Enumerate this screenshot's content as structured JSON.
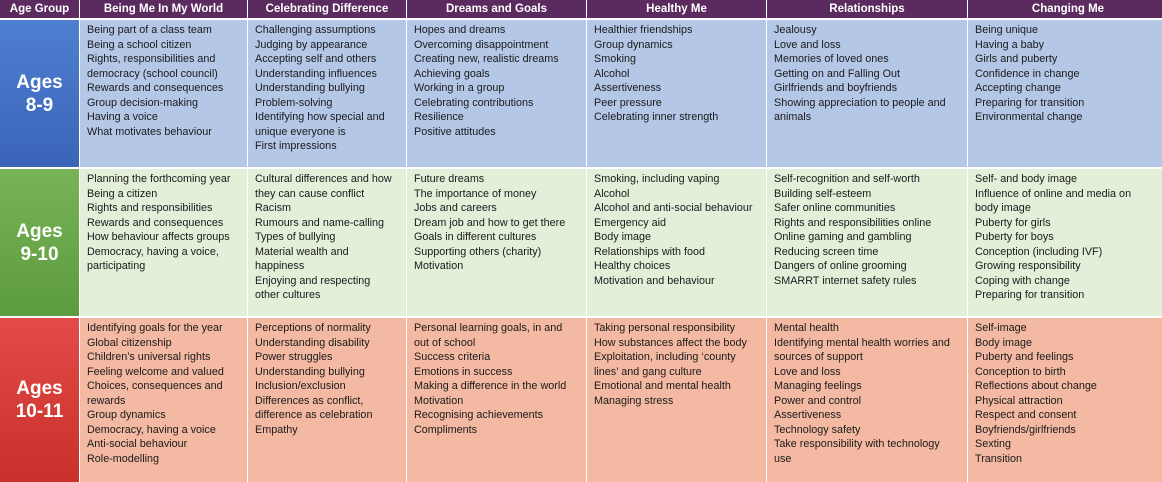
{
  "headers": [
    "Age Group",
    "Being Me In My World",
    "Celebrating Difference",
    "Dreams and Goals",
    "Healthy Me",
    "Relationships",
    "Changing Me"
  ],
  "rows": [
    {
      "age_line1": "Ages",
      "age_line2": "8-9",
      "cells": [
        [
          "Being part of a class team",
          "Being a school citizen",
          "Rights, responsibilities and",
          "democracy (school council)",
          "Rewards and consequences",
          "Group decision-making",
          "Having a voice",
          "What motivates behaviour"
        ],
        [
          "Challenging assumptions",
          "Judging by appearance",
          "Accepting self and others",
          "Understanding influences",
          "Understanding bullying",
          "Problem-solving",
          "Identifying how special and",
          "unique everyone is",
          "First impressions"
        ],
        [
          "Hopes and dreams",
          "Overcoming disappointment",
          "Creating new, realistic dreams",
          "Achieving goals",
          "Working in a group",
          "Celebrating contributions",
          "Resilience",
          "Positive attitudes"
        ],
        [
          "Healthier friendships",
          "Group dynamics",
          "Smoking",
          "Alcohol",
          "Assertiveness",
          "Peer pressure",
          "Celebrating inner strength"
        ],
        [
          "Jealousy",
          "Love and loss",
          "Memories of loved ones",
          "Getting on and Falling Out",
          "Girlfriends and boyfriends",
          "Showing appreciation to people and",
          "animals"
        ],
        [
          "Being unique",
          "Having a baby",
          "Girls and puberty",
          "Confidence in change",
          "Accepting change",
          "Preparing for transition",
          "Environmental change"
        ]
      ]
    },
    {
      "age_line1": "Ages",
      "age_line2": "9-10",
      "cells": [
        [
          "Planning the forthcoming year",
          "Being a citizen",
          "Rights and responsibilities",
          "Rewards and consequences",
          "How behaviour affects groups",
          "Democracy, having a voice,",
          "participating"
        ],
        [
          "Cultural differences and how",
          "they can cause conflict",
          "Racism",
          "Rumours and name-calling",
          "Types of bullying",
          "Material wealth and",
          "happiness",
          "Enjoying and respecting",
          "other cultures"
        ],
        [
          "Future dreams",
          "The importance of money",
          "Jobs and careers",
          "Dream job and how to get there",
          "Goals in different cultures",
          "Supporting others (charity)",
          "Motivation"
        ],
        [
          "Smoking, including vaping",
          "Alcohol",
          "Alcohol and anti-social behaviour",
          "Emergency aid",
          "Body image",
          "Relationships with food",
          "Healthy choices",
          "Motivation and behaviour"
        ],
        [
          "Self-recognition and self-worth",
          "Building self-esteem",
          "Safer online communities",
          "Rights and responsibilities online",
          "Online gaming and gambling",
          "Reducing screen time",
          "Dangers of online grooming",
          "SMARRT internet safety rules"
        ],
        [
          "Self- and body image",
          "Influence of online and media on",
          "body image",
          "Puberty for girls",
          "Puberty for boys",
          "Conception (including IVF)",
          "Growing responsibility",
          "Coping with change",
          "Preparing for transition"
        ]
      ]
    },
    {
      "age_line1": "Ages",
      "age_line2": "10-11",
      "cells": [
        [
          "Identifying goals for the year",
          "Global citizenship",
          "Children’s universal rights",
          "Feeling welcome and valued",
          "Choices, consequences and",
          "rewards",
          "Group dynamics",
          "Democracy, having a voice",
          "Anti-social behaviour",
          "Role-modelling"
        ],
        [
          "Perceptions of normality",
          "Understanding disability",
          "Power struggles",
          "Understanding bullying",
          "Inclusion/exclusion",
          "Differences as conflict,",
          "difference as celebration",
          "Empathy"
        ],
        [
          "Personal learning goals, in and",
          "out of school",
          "Success criteria",
          "Emotions in success",
          "Making a difference in the world",
          "Motivation",
          "Recognising achievements",
          "Compliments"
        ],
        [
          "Taking personal responsibility",
          "How substances affect the body",
          "Exploitation, including ‘county",
          "lines’ and gang culture",
          "Emotional and mental health",
          "Managing stress"
        ],
        [
          "Mental health",
          "Identifying mental health worries and",
          "sources of support",
          "Love and loss",
          "Managing feelings",
          "Power and control",
          "Assertiveness",
          "Technology safety",
          "Take responsibility with technology",
          "use"
        ],
        [
          "Self-image",
          "Body image",
          "Puberty and feelings",
          "Conception to birth",
          "Reflections about change",
          "Physical attraction",
          "Respect and consent",
          "Boyfriends/girlfriends",
          "Sexting",
          "Transition"
        ]
      ]
    }
  ]
}
